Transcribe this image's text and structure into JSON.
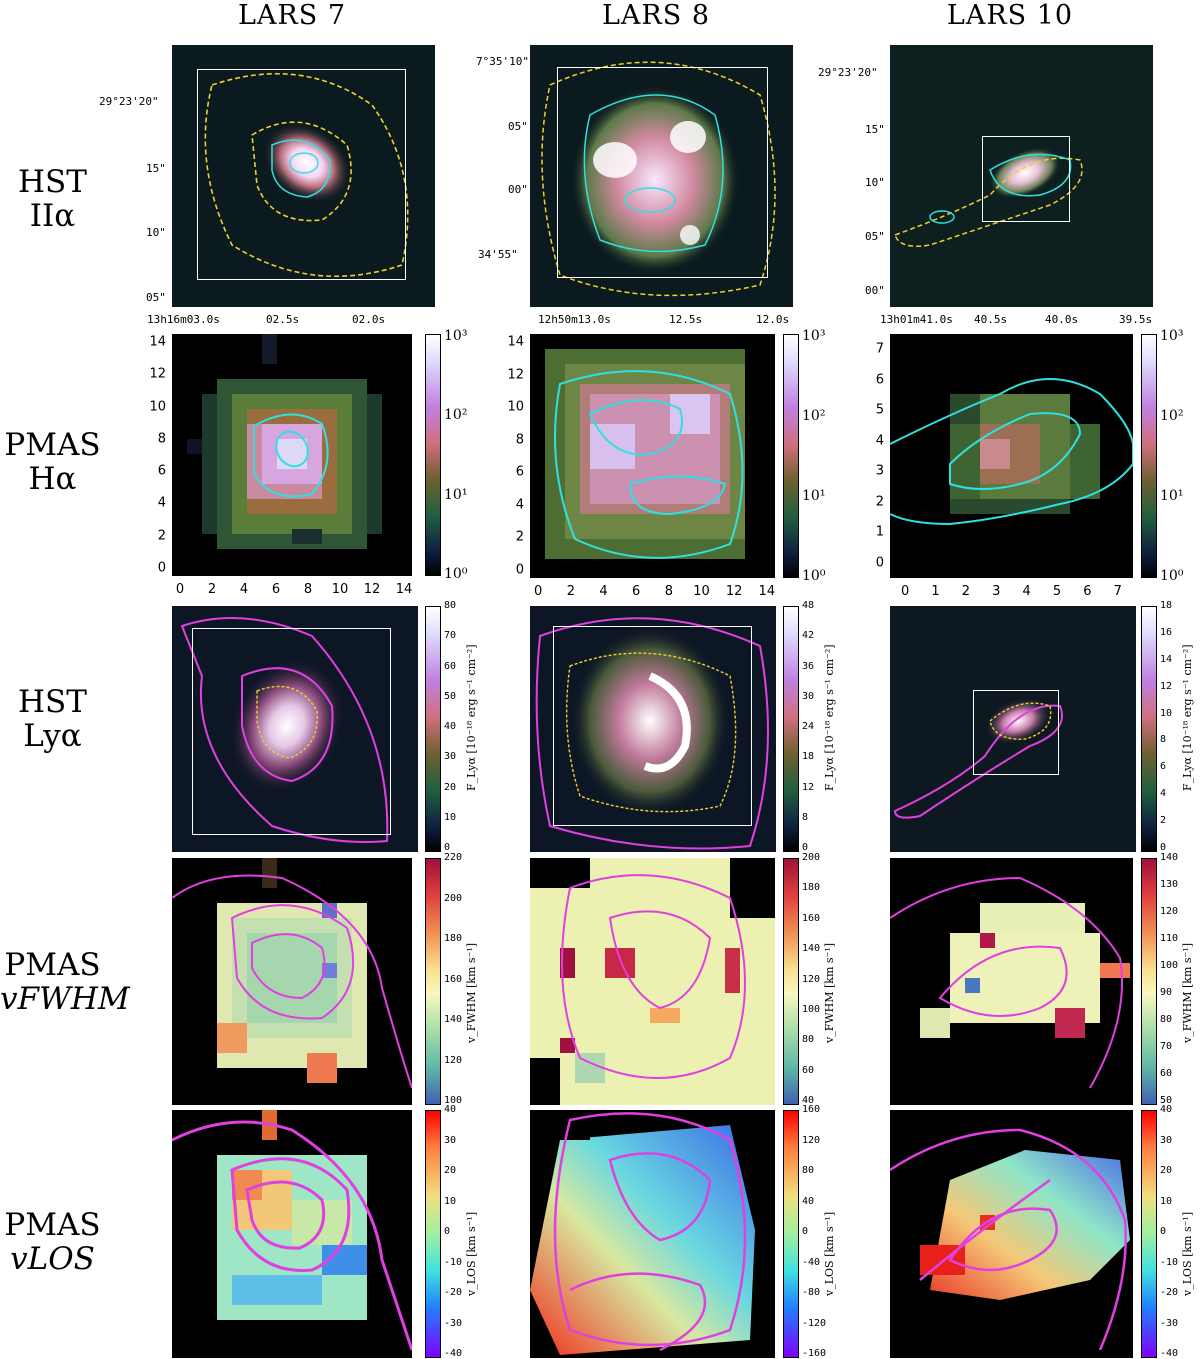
{
  "columns": [
    "LARS 7",
    "LARS 8",
    "LARS 10"
  ],
  "rows": [
    {
      "line1": "HST",
      "line2": "IIα"
    },
    {
      "line1": "PMAS",
      "line2": "Hα"
    },
    {
      "line1": "HST",
      "line2": "Lyα"
    },
    {
      "line1": "PMAS",
      "line2": "vFWHM"
    },
    {
      "line1": "PMAS",
      "line2": "vLOS"
    }
  ],
  "hst_coords": {
    "lars7": {
      "dec": [
        "29°23'20\"",
        "15\"",
        "10\"",
        "05\""
      ],
      "ra": [
        "13h16m03.0s",
        "02.5s",
        "02.0s"
      ]
    },
    "lars8": {
      "dec": [
        "7°35'10\"",
        "05\"",
        "00\"",
        "34'55\""
      ],
      "ra": [
        "12h50m13.0s",
        "12.5s",
        "12.0s"
      ]
    },
    "lars10": {
      "dec": [
        "29°23'20\"",
        "15\"",
        "10\"",
        "05\"",
        "00\""
      ],
      "ra": [
        "13h01m41.0s",
        "40.5s",
        "40.0s",
        "39.5s"
      ]
    }
  },
  "pmas_axes": {
    "lars7": {
      "ticks": [
        "0",
        "2",
        "4",
        "6",
        "8",
        "10",
        "12",
        "14"
      ]
    },
    "lars8": {
      "ticks": [
        "0",
        "2",
        "4",
        "6",
        "8",
        "10",
        "12",
        "14"
      ]
    },
    "lars10": {
      "ticks": [
        "0",
        "1",
        "2",
        "3",
        "4",
        "5",
        "6",
        "7"
      ]
    }
  },
  "colorbars": {
    "halpha": {
      "ticks": [
        "10³",
        "10²",
        "10¹",
        "10⁰"
      ],
      "ticks_lars8": [
        "10³",
        "10²",
        "10¹",
        "10⁰"
      ]
    },
    "lya": {
      "lars7": [
        "80",
        "70",
        "60",
        "50",
        "40",
        "30",
        "20",
        "10",
        "0"
      ],
      "lars8": [
        "48",
        "42",
        "36",
        "30",
        "24",
        "18",
        "12",
        "8",
        "0"
      ],
      "lars10": [
        "18",
        "16",
        "14",
        "12",
        "10",
        "8",
        "6",
        "4",
        "2",
        "0"
      ],
      "label": "F_Lyα [10⁻¹⁸ erg s⁻¹ cm⁻²]"
    },
    "fwhm": {
      "lars7": [
        "220",
        "200",
        "180",
        "160",
        "140",
        "120",
        "100"
      ],
      "lars8": [
        "200",
        "180",
        "160",
        "140",
        "120",
        "100",
        "80",
        "60",
        "40"
      ],
      "lars10": [
        "140",
        "130",
        "120",
        "110",
        "100",
        "90",
        "80",
        "70",
        "60",
        "50"
      ],
      "label": "v_FWHM [km s⁻¹]"
    },
    "los": {
      "lars7": [
        "40",
        "30",
        "20",
        "10",
        "0",
        "-10",
        "-20",
        "-30",
        "-40"
      ],
      "lars8": [
        "160",
        "120",
        "80",
        "40",
        "0",
        "-40",
        "-80",
        "-120",
        "-160"
      ],
      "lars10": [
        "40",
        "30",
        "20",
        "10",
        "0",
        "-10",
        "-20",
        "-30",
        "-40"
      ],
      "label": "v_LOS [km s⁻¹]"
    }
  }
}
